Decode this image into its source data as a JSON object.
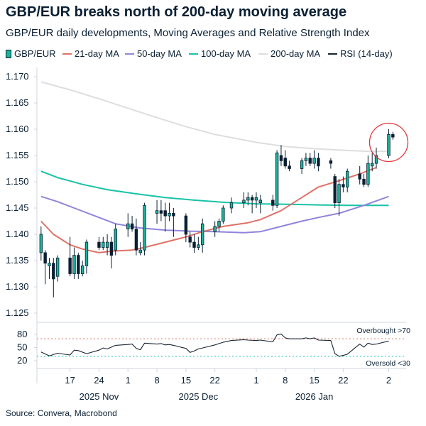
{
  "chart_data": {
    "type": "candlestick",
    "title": "GBP/EUR breaks north of 200-day moving average",
    "subtitle": "GBP/EUR daily developments, Moving Averages and Relative Strength Index",
    "source": "Source: Convera, Macrobond",
    "legend": [
      {
        "name": "GBP/EUR",
        "color": "#1cb39c",
        "kind": "candle"
      },
      {
        "name": "21-day MA",
        "color": "#e07267",
        "kind": "line"
      },
      {
        "name": "50-day MA",
        "color": "#8f85dc",
        "kind": "line"
      },
      {
        "name": "100-day MA",
        "color": "#17c2a8",
        "kind": "line"
      },
      {
        "name": "200-day MA",
        "color": "#dedede",
        "kind": "line"
      },
      {
        "name": "RSI (14-day)",
        "color": "#1a2533",
        "kind": "line"
      }
    ],
    "price_axis": {
      "min": 1.125,
      "max": 1.17,
      "ticks": [
        "1.125",
        "1.130",
        "1.135",
        "1.140",
        "1.145",
        "1.150",
        "1.155",
        "1.160",
        "1.165",
        "1.170"
      ]
    },
    "rsi_axis": {
      "min": 20,
      "max": 80,
      "ticks": [
        "20",
        "50",
        "80"
      ],
      "overbought": 70,
      "oversold": 30,
      "overbought_label": "Overbought >70",
      "oversold_label": "Oversold <30"
    },
    "day_ticks": [
      {
        "label": "17",
        "x": "2025-11-17"
      },
      {
        "label": "24",
        "x": "2025-11-24"
      },
      {
        "label": "1",
        "x": "2025-12-01"
      },
      {
        "label": "8",
        "x": "2025-12-08"
      },
      {
        "label": "15",
        "x": "2025-12-15"
      },
      {
        "label": "22",
        "x": "2025-12-22"
      },
      {
        "label": "1",
        "x": "2026-01-01"
      },
      {
        "label": "8",
        "x": "2026-01-08"
      },
      {
        "label": "15",
        "x": "2026-01-15"
      },
      {
        "label": "22",
        "x": "2026-01-22"
      },
      {
        "label": "2",
        "x": "2026-02-02"
      }
    ],
    "month_labels": [
      {
        "label": "2025 Nov",
        "x": "2025-11-24"
      },
      {
        "label": "2025 Dec",
        "x": "2025-12-18"
      },
      {
        "label": "2026 Jan",
        "x": "2026-01-15"
      }
    ],
    "highlight": {
      "x": "2026-02-02",
      "y": 1.1575
    },
    "candles": [
      {
        "d": "2025-11-10",
        "o": 1.1365,
        "h": 1.1415,
        "l": 1.135,
        "c": 1.14
      },
      {
        "d": "2025-11-11",
        "o": 1.1365,
        "h": 1.137,
        "l": 1.1305,
        "c": 1.1345
      },
      {
        "d": "2025-11-12",
        "o": 1.134,
        "h": 1.1355,
        "l": 1.1315,
        "c": 1.1345
      },
      {
        "d": "2025-11-13",
        "o": 1.1345,
        "h": 1.1355,
        "l": 1.128,
        "c": 1.1315
      },
      {
        "d": "2025-11-14",
        "o": 1.132,
        "h": 1.136,
        "l": 1.131,
        "c": 1.1355
      },
      {
        "d": "2025-11-17",
        "o": 1.1355,
        "h": 1.1395,
        "l": 1.132,
        "c": 1.1325
      },
      {
        "d": "2025-11-18",
        "o": 1.1325,
        "h": 1.1375,
        "l": 1.1315,
        "c": 1.136
      },
      {
        "d": "2025-11-19",
        "o": 1.136,
        "h": 1.1365,
        "l": 1.1315,
        "c": 1.1325
      },
      {
        "d": "2025-11-20",
        "o": 1.1325,
        "h": 1.135,
        "l": 1.132,
        "c": 1.134
      },
      {
        "d": "2025-11-21",
        "o": 1.134,
        "h": 1.139,
        "l": 1.1325,
        "c": 1.1385
      },
      {
        "d": "2025-11-24",
        "o": 1.1385,
        "h": 1.1395,
        "l": 1.137,
        "c": 1.1375
      },
      {
        "d": "2025-11-25",
        "o": 1.1375,
        "h": 1.1395,
        "l": 1.137,
        "c": 1.1385
      },
      {
        "d": "2025-11-26",
        "o": 1.1375,
        "h": 1.14,
        "l": 1.136,
        "c": 1.1385
      },
      {
        "d": "2025-11-27",
        "o": 1.1385,
        "h": 1.1395,
        "l": 1.1335,
        "c": 1.136
      },
      {
        "d": "2025-11-28",
        "o": 1.137,
        "h": 1.142,
        "l": 1.136,
        "c": 1.141
      },
      {
        "d": "2025-12-01",
        "o": 1.141,
        "h": 1.144,
        "l": 1.1395,
        "c": 1.142
      },
      {
        "d": "2025-12-02",
        "o": 1.142,
        "h": 1.1435,
        "l": 1.1405,
        "c": 1.141
      },
      {
        "d": "2025-12-03",
        "o": 1.141,
        "h": 1.143,
        "l": 1.136,
        "c": 1.137
      },
      {
        "d": "2025-12-04",
        "o": 1.1365,
        "h": 1.1385,
        "l": 1.136,
        "c": 1.137
      },
      {
        "d": "2025-12-05",
        "o": 1.137,
        "h": 1.146,
        "l": 1.136,
        "c": 1.1455
      },
      {
        "d": "2025-12-08",
        "o": 1.144,
        "h": 1.1465,
        "l": 1.142,
        "c": 1.1445
      },
      {
        "d": "2025-12-09",
        "o": 1.1445,
        "h": 1.1465,
        "l": 1.1425,
        "c": 1.144
      },
      {
        "d": "2025-12-10",
        "o": 1.1445,
        "h": 1.146,
        "l": 1.1405,
        "c": 1.1435
      },
      {
        "d": "2025-12-11",
        "o": 1.1435,
        "h": 1.146,
        "l": 1.1425,
        "c": 1.144
      },
      {
        "d": "2025-12-12",
        "o": 1.144,
        "h": 1.145,
        "l": 1.1395,
        "c": 1.1435
      },
      {
        "d": "2025-12-15",
        "o": 1.1435,
        "h": 1.144,
        "l": 1.1385,
        "c": 1.14
      },
      {
        "d": "2025-12-16",
        "o": 1.1395,
        "h": 1.1405,
        "l": 1.1375,
        "c": 1.1385
      },
      {
        "d": "2025-12-17",
        "o": 1.1385,
        "h": 1.14,
        "l": 1.1365,
        "c": 1.1375
      },
      {
        "d": "2025-12-18",
        "o": 1.1375,
        "h": 1.1395,
        "l": 1.137,
        "c": 1.138
      },
      {
        "d": "2025-12-19",
        "o": 1.138,
        "h": 1.143,
        "l": 1.1365,
        "c": 1.142
      },
      {
        "d": "2025-12-22",
        "o": 1.1405,
        "h": 1.1425,
        "l": 1.1395,
        "c": 1.1415
      },
      {
        "d": "2025-12-23",
        "o": 1.1415,
        "h": 1.143,
        "l": 1.1405,
        "c": 1.1425
      },
      {
        "d": "2025-12-24",
        "o": 1.1425,
        "h": 1.1455,
        "l": 1.142,
        "c": 1.145
      },
      {
        "d": "2025-12-26",
        "o": 1.145,
        "h": 1.147,
        "l": 1.144,
        "c": 1.146
      },
      {
        "d": "2025-12-29",
        "o": 1.146,
        "h": 1.148,
        "l": 1.145,
        "c": 1.1465
      },
      {
        "d": "2025-12-30",
        "o": 1.1465,
        "h": 1.148,
        "l": 1.1455,
        "c": 1.147
      },
      {
        "d": "2025-12-31",
        "o": 1.147,
        "h": 1.1475,
        "l": 1.144,
        "c": 1.1465
      },
      {
        "d": "2026-01-01",
        "o": 1.1465,
        "h": 1.148,
        "l": 1.145,
        "c": 1.147
      },
      {
        "d": "2026-01-02",
        "o": 1.146,
        "h": 1.1475,
        "l": 1.144,
        "c": 1.1465
      },
      {
        "d": "2026-01-05",
        "o": 1.1465,
        "h": 1.1475,
        "l": 1.1445,
        "c": 1.1455
      },
      {
        "d": "2026-01-06",
        "o": 1.1455,
        "h": 1.156,
        "l": 1.145,
        "c": 1.1555
      },
      {
        "d": "2026-01-07",
        "o": 1.155,
        "h": 1.157,
        "l": 1.153,
        "c": 1.154
      },
      {
        "d": "2026-01-08",
        "o": 1.1545,
        "h": 1.156,
        "l": 1.1525,
        "c": 1.153
      },
      {
        "d": "2026-01-09",
        "o": 1.153,
        "h": 1.154,
        "l": 1.152,
        "c": 1.1525
      },
      {
        "d": "2026-01-12",
        "o": 1.1525,
        "h": 1.1545,
        "l": 1.1515,
        "c": 1.154
      },
      {
        "d": "2026-01-13",
        "o": 1.154,
        "h": 1.1555,
        "l": 1.153,
        "c": 1.1545
      },
      {
        "d": "2026-01-14",
        "o": 1.1545,
        "h": 1.1555,
        "l": 1.153,
        "c": 1.1535
      },
      {
        "d": "2026-01-15",
        "o": 1.1535,
        "h": 1.156,
        "l": 1.1525,
        "c": 1.1545
      },
      {
        "d": "2026-01-16",
        "o": 1.1545,
        "h": 1.1555,
        "l": 1.152,
        "c": 1.153
      },
      {
        "d": "2026-01-19",
        "o": 1.154,
        "h": 1.1545,
        "l": 1.1525,
        "c": 1.1535
      },
      {
        "d": "2026-01-20",
        "o": 1.151,
        "h": 1.1515,
        "l": 1.145,
        "c": 1.146
      },
      {
        "d": "2026-01-21",
        "o": 1.146,
        "h": 1.1505,
        "l": 1.1435,
        "c": 1.1495
      },
      {
        "d": "2026-01-22",
        "o": 1.1495,
        "h": 1.151,
        "l": 1.148,
        "c": 1.149
      },
      {
        "d": "2026-01-23",
        "o": 1.149,
        "h": 1.1525,
        "l": 1.148,
        "c": 1.152
      },
      {
        "d": "2026-01-26",
        "o": 1.1515,
        "h": 1.153,
        "l": 1.1495,
        "c": 1.1505
      },
      {
        "d": "2026-01-27",
        "o": 1.1505,
        "h": 1.1515,
        "l": 1.149,
        "c": 1.1495
      },
      {
        "d": "2026-01-28",
        "o": 1.1495,
        "h": 1.155,
        "l": 1.149,
        "c": 1.1535
      },
      {
        "d": "2026-01-29",
        "o": 1.153,
        "h": 1.1555,
        "l": 1.152,
        "c": 1.1535
      },
      {
        "d": "2026-01-30",
        "o": 1.1535,
        "h": 1.1565,
        "l": 1.1525,
        "c": 1.155
      },
      {
        "d": "2026-02-02",
        "o": 1.155,
        "h": 1.16,
        "l": 1.1545,
        "c": 1.159
      },
      {
        "d": "2026-02-03",
        "o": 1.159,
        "h": 1.1595,
        "l": 1.158,
        "c": 1.1585
      }
    ],
    "ma21": [
      {
        "x": "2025-11-10",
        "y": 1.1425
      },
      {
        "x": "2025-11-13",
        "y": 1.14
      },
      {
        "x": "2025-11-17",
        "y": 1.138
      },
      {
        "x": "2025-11-20",
        "y": 1.1372
      },
      {
        "x": "2025-11-24",
        "y": 1.1365
      },
      {
        "x": "2025-11-27",
        "y": 1.1368
      },
      {
        "x": "2025-12-02",
        "y": 1.137
      },
      {
        "x": "2025-12-05",
        "y": 1.1375
      },
      {
        "x": "2025-12-10",
        "y": 1.1385
      },
      {
        "x": "2025-12-15",
        "y": 1.1395
      },
      {
        "x": "2025-12-19",
        "y": 1.1405
      },
      {
        "x": "2025-12-24",
        "y": 1.1415
      },
      {
        "x": "2025-12-30",
        "y": 1.1422
      },
      {
        "x": "2026-01-02",
        "y": 1.1428
      },
      {
        "x": "2026-01-07",
        "y": 1.1445
      },
      {
        "x": "2026-01-12",
        "y": 1.147
      },
      {
        "x": "2026-01-16",
        "y": 1.149
      },
      {
        "x": "2026-01-21",
        "y": 1.1502
      },
      {
        "x": "2026-01-26",
        "y": 1.1515
      },
      {
        "x": "2026-01-30",
        "y": 1.1527
      }
    ],
    "ma50": [
      {
        "x": "2025-11-10",
        "y": 1.1472
      },
      {
        "x": "2025-11-14",
        "y": 1.1462
      },
      {
        "x": "2025-11-18",
        "y": 1.145
      },
      {
        "x": "2025-11-24",
        "y": 1.1432
      },
      {
        "x": "2025-11-28",
        "y": 1.142
      },
      {
        "x": "2025-12-04",
        "y": 1.1412
      },
      {
        "x": "2025-12-10",
        "y": 1.1408
      },
      {
        "x": "2025-12-16",
        "y": 1.1406
      },
      {
        "x": "2025-12-22",
        "y": 1.1405
      },
      {
        "x": "2025-12-29",
        "y": 1.1403
      },
      {
        "x": "2026-01-02",
        "y": 1.1405
      },
      {
        "x": "2026-01-07",
        "y": 1.1415
      },
      {
        "x": "2026-01-12",
        "y": 1.1425
      },
      {
        "x": "2026-01-16",
        "y": 1.1432
      },
      {
        "x": "2026-01-21",
        "y": 1.144
      },
      {
        "x": "2026-01-27",
        "y": 1.1455
      },
      {
        "x": "2026-02-02",
        "y": 1.1472
      }
    ],
    "ma100": [
      {
        "x": "2025-11-10",
        "y": 1.152
      },
      {
        "x": "2025-11-14",
        "y": 1.1508
      },
      {
        "x": "2025-11-20",
        "y": 1.1495
      },
      {
        "x": "2025-11-26",
        "y": 1.1485
      },
      {
        "x": "2025-12-03",
        "y": 1.1477
      },
      {
        "x": "2025-12-10",
        "y": 1.147
      },
      {
        "x": "2025-12-17",
        "y": 1.1465
      },
      {
        "x": "2025-12-24",
        "y": 1.1461
      },
      {
        "x": "2026-01-01",
        "y": 1.1458
      },
      {
        "x": "2026-01-09",
        "y": 1.1457
      },
      {
        "x": "2026-01-16",
        "y": 1.1456
      },
      {
        "x": "2026-01-23",
        "y": 1.1455
      },
      {
        "x": "2026-02-02",
        "y": 1.1455
      }
    ],
    "ma200": [
      {
        "x": "2025-11-10",
        "y": 1.169
      },
      {
        "x": "2025-11-17",
        "y": 1.1675
      },
      {
        "x": "2025-11-24",
        "y": 1.1658
      },
      {
        "x": "2025-12-01",
        "y": 1.164
      },
      {
        "x": "2025-12-08",
        "y": 1.1622
      },
      {
        "x": "2025-12-15",
        "y": 1.1605
      },
      {
        "x": "2025-12-22",
        "y": 1.159
      },
      {
        "x": "2026-01-01",
        "y": 1.1575
      },
      {
        "x": "2026-01-08",
        "y": 1.1567
      },
      {
        "x": "2026-01-15",
        "y": 1.1563
      },
      {
        "x": "2026-01-22",
        "y": 1.156
      },
      {
        "x": "2026-01-28",
        "y": 1.1558
      },
      {
        "x": "2026-02-02",
        "y": 1.1558
      }
    ],
    "rsi": [
      {
        "x": "2025-11-10",
        "y": 40
      },
      {
        "x": "2025-11-12",
        "y": 31
      },
      {
        "x": "2025-11-13",
        "y": 34
      },
      {
        "x": "2025-11-14",
        "y": 37
      },
      {
        "x": "2025-11-17",
        "y": 33
      },
      {
        "x": "2025-11-18",
        "y": 44
      },
      {
        "x": "2025-11-19",
        "y": 43
      },
      {
        "x": "2025-11-21",
        "y": 36
      },
      {
        "x": "2025-11-24",
        "y": 44
      },
      {
        "x": "2025-11-25",
        "y": 49
      },
      {
        "x": "2025-11-26",
        "y": 47
      },
      {
        "x": "2025-11-28",
        "y": 55
      },
      {
        "x": "2025-12-01",
        "y": 57
      },
      {
        "x": "2025-12-02",
        "y": 58
      },
      {
        "x": "2025-12-03",
        "y": 48
      },
      {
        "x": "2025-12-04",
        "y": 45
      },
      {
        "x": "2025-12-05",
        "y": 60
      },
      {
        "x": "2025-12-08",
        "y": 58
      },
      {
        "x": "2025-12-09",
        "y": 59
      },
      {
        "x": "2025-12-10",
        "y": 56
      },
      {
        "x": "2025-12-11",
        "y": 57
      },
      {
        "x": "2025-12-12",
        "y": 55
      },
      {
        "x": "2025-12-15",
        "y": 48
      },
      {
        "x": "2025-12-16",
        "y": 39
      },
      {
        "x": "2025-12-17",
        "y": 42
      },
      {
        "x": "2025-12-18",
        "y": 47
      },
      {
        "x": "2025-12-19",
        "y": 49
      },
      {
        "x": "2025-12-22",
        "y": 56
      },
      {
        "x": "2025-12-23",
        "y": 59
      },
      {
        "x": "2025-12-24",
        "y": 62
      },
      {
        "x": "2025-12-26",
        "y": 66
      },
      {
        "x": "2025-12-29",
        "y": 68
      },
      {
        "x": "2025-12-30",
        "y": 67
      },
      {
        "x": "2026-01-01",
        "y": 66
      },
      {
        "x": "2026-01-02",
        "y": 67
      },
      {
        "x": "2026-01-05",
        "y": 63
      },
      {
        "x": "2026-01-06",
        "y": 79
      },
      {
        "x": "2026-01-07",
        "y": 81
      },
      {
        "x": "2026-01-08",
        "y": 72
      },
      {
        "x": "2026-01-09",
        "y": 70
      },
      {
        "x": "2026-01-12",
        "y": 70
      },
      {
        "x": "2026-01-13",
        "y": 72
      },
      {
        "x": "2026-01-14",
        "y": 70
      },
      {
        "x": "2026-01-15",
        "y": 72
      },
      {
        "x": "2026-01-16",
        "y": 67
      },
      {
        "x": "2026-01-19",
        "y": 66
      },
      {
        "x": "2026-01-20",
        "y": 36
      },
      {
        "x": "2026-01-21",
        "y": 30
      },
      {
        "x": "2026-01-22",
        "y": 32
      },
      {
        "x": "2026-01-23",
        "y": 35
      },
      {
        "x": "2026-01-26",
        "y": 58
      },
      {
        "x": "2026-01-27",
        "y": 51
      },
      {
        "x": "2026-01-28",
        "y": 60
      },
      {
        "x": "2026-01-29",
        "y": 57
      },
      {
        "x": "2026-01-30",
        "y": 58
      },
      {
        "x": "2026-02-02",
        "y": 65
      }
    ]
  }
}
